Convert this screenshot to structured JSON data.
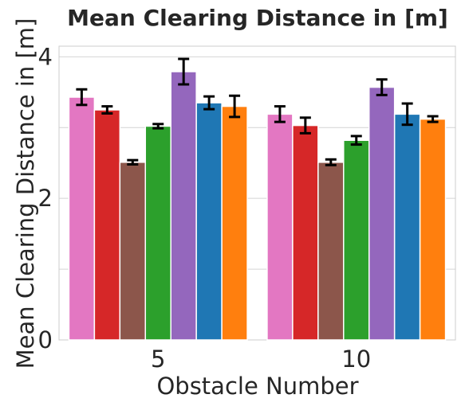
{
  "chart_data": {
    "type": "bar",
    "title": "Mean Clearing Distance in [m]",
    "xlabel": "Obstacle Number",
    "ylabel": "Mean Clearing Distance in [m]",
    "categories": [
      "5",
      "10"
    ],
    "ylim": [
      0,
      4.15
    ],
    "yticks": [
      0,
      2,
      4
    ],
    "grid": true,
    "legend": "none",
    "series": [
      {
        "color": "#e377c2",
        "values": [
          3.43,
          3.19
        ],
        "errors": [
          0.11,
          0.11
        ]
      },
      {
        "color": "#d62728",
        "values": [
          3.25,
          3.03
        ],
        "errors": [
          0.05,
          0.11
        ]
      },
      {
        "color": "#8c564b",
        "values": [
          2.51,
          2.51
        ],
        "errors": [
          0.03,
          0.04
        ]
      },
      {
        "color": "#2ca02c",
        "values": [
          3.02,
          2.82
        ],
        "errors": [
          0.03,
          0.06
        ]
      },
      {
        "color": "#9467bd",
        "values": [
          3.79,
          3.57
        ],
        "errors": [
          0.18,
          0.11
        ]
      },
      {
        "color": "#1f77b4",
        "values": [
          3.35,
          3.19
        ],
        "errors": [
          0.09,
          0.15
        ]
      },
      {
        "color": "#ff7f0e",
        "values": [
          3.3,
          3.12
        ],
        "errors": [
          0.15,
          0.04
        ]
      }
    ]
  }
}
